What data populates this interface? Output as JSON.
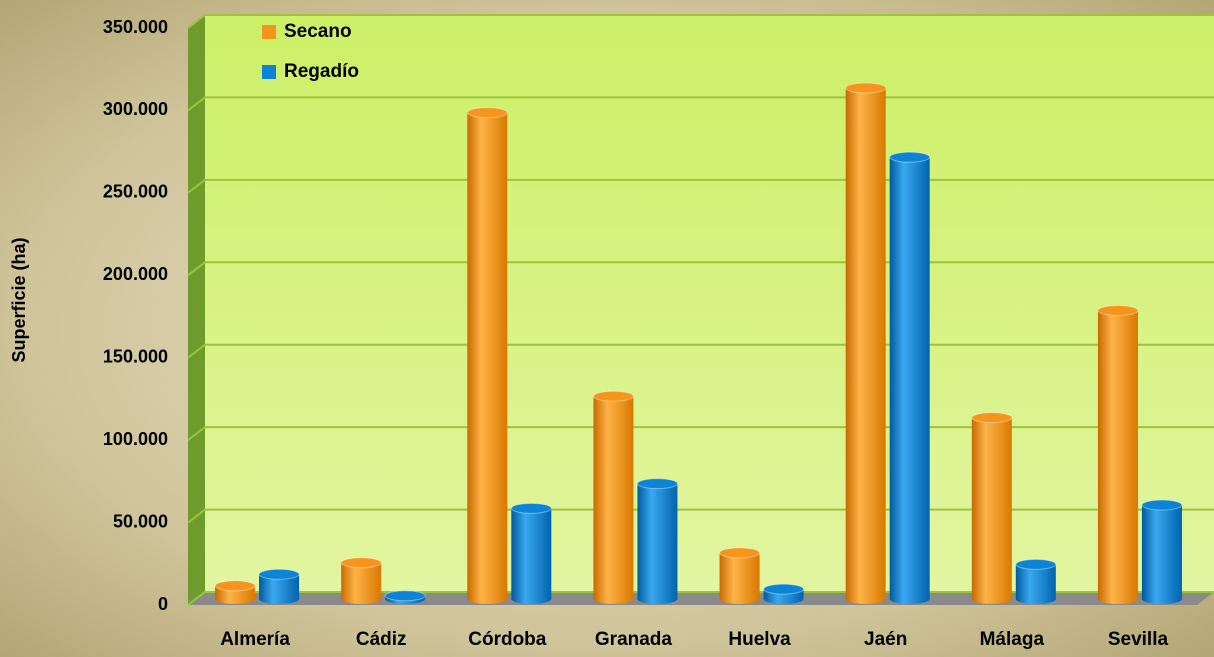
{
  "chart_data": {
    "type": "bar",
    "y_label": "Superficie (ha)",
    "categories": [
      "Almería",
      "Cádiz",
      "Córdoba",
      "Granada",
      "Huelva",
      "Jaén",
      "Málaga",
      "Sevilla"
    ],
    "series": [
      {
        "name": "Secano",
        "color": "#f7941d",
        "values": [
          8000,
          22000,
          295000,
          123000,
          28000,
          310000,
          110000,
          175000
        ]
      },
      {
        "name": "Regadío",
        "color": "#0b84d8",
        "values": [
          15000,
          2000,
          55000,
          70000,
          6000,
          268000,
          21000,
          57000
        ]
      }
    ],
    "ylim": [
      0,
      350000
    ],
    "yticks": [
      0,
      {
        "value": 50000,
        "label": "50.000"
      },
      {
        "value": 100000,
        "label": "100.000"
      },
      {
        "value": 150000,
        "label": "150.000"
      },
      {
        "value": 200000,
        "label": "200.000"
      },
      {
        "value": 250000,
        "label": "250.000"
      },
      {
        "value": 300000,
        "label": "300.000"
      },
      {
        "value": 350000,
        "label": "350.000"
      }
    ],
    "grid": true,
    "legend": "top-left"
  }
}
